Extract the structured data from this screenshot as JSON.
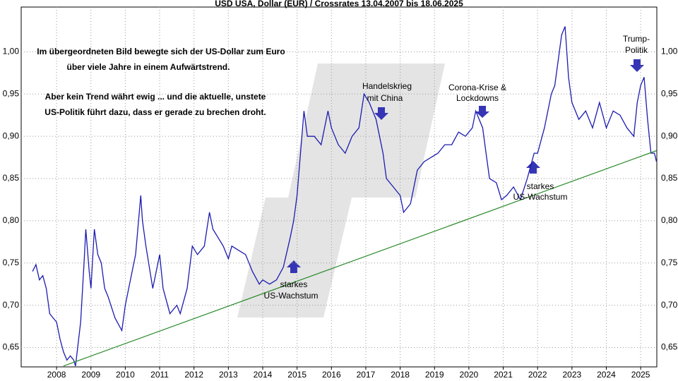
{
  "chart_data": {
    "type": "line",
    "title": "USD USA, Dollar (EUR) / Crossrates 13.04.2007 bis 18.06.2025",
    "annotations": [
      "Im übergeordneten Bild bewegte sich der US-Dollar zum Euro",
      "über viele Jahre in einem Aufwärtstrend.",
      "Aber kein Trend währt ewig ... und die aktuelle, unstete",
      "US-Politik führt dazu, dass er gerade zu brechen droht.",
      "Handelskrieg",
      "mit China",
      "Corona-Krise &",
      "Lockdowns",
      "Trump-",
      "Politik",
      "starkes",
      "US-Wachstum",
      "starkes",
      "US-Wachstum"
    ],
    "xlim": [
      2006.97,
      2025.47
    ],
    "xticks": [
      2008,
      2009,
      2010,
      2011,
      2012,
      2013,
      2014,
      2015,
      2016,
      2017,
      2018,
      2019,
      2020,
      2021,
      2022,
      2023,
      2024,
      2025
    ],
    "ylim": [
      0.627,
      1.053
    ],
    "yticks": [
      {
        "value": 0.65,
        "label": "0,65"
      },
      {
        "value": 0.7,
        "label": "0,70"
      },
      {
        "value": 0.75,
        "label": "0,75"
      },
      {
        "value": 0.8,
        "label": "0,80"
      },
      {
        "value": 0.85,
        "label": "0,85"
      },
      {
        "value": 0.9,
        "label": "0,90"
      },
      {
        "value": 0.95,
        "label": "0,95"
      },
      {
        "value": 1.0,
        "label": "1,00"
      }
    ],
    "grid": true,
    "series": [
      {
        "color": "#1c1cb0",
        "x": [
          2007.3,
          2007.4,
          2007.5,
          2007.6,
          2007.7,
          2007.8,
          2007.9,
          2008.0,
          2008.1,
          2008.2,
          2008.3,
          2008.4,
          2008.5,
          2008.55,
          2008.7,
          2008.8,
          2008.85,
          2008.95,
          2009.0,
          2009.1,
          2009.2,
          2009.3,
          2009.4,
          2009.5,
          2009.7,
          2009.9,
          2010.0,
          2010.2,
          2010.3,
          2010.45,
          2010.5,
          2010.6,
          2010.8,
          2010.9,
          2011.0,
          2011.1,
          2011.3,
          2011.5,
          2011.6,
          2011.8,
          2011.95,
          2012.1,
          2012.3,
          2012.45,
          2012.55,
          2012.7,
          2012.85,
          2013.0,
          2013.1,
          2013.3,
          2013.5,
          2013.7,
          2013.9,
          2014.0,
          2014.2,
          2014.4,
          2014.6,
          2014.8,
          2014.9,
          2015.0,
          2015.1,
          2015.2,
          2015.3,
          2015.5,
          2015.7,
          2015.9,
          2016.0,
          2016.2,
          2016.4,
          2016.6,
          2016.8,
          2016.95,
          2017.1,
          2017.3,
          2017.5,
          2017.6,
          2017.8,
          2018.0,
          2018.1,
          2018.3,
          2018.5,
          2018.7,
          2018.9,
          2019.1,
          2019.3,
          2019.5,
          2019.7,
          2019.9,
          2020.1,
          2020.2,
          2020.4,
          2020.5,
          2020.6,
          2020.8,
          2020.95,
          2021.1,
          2021.3,
          2021.5,
          2021.7,
          2021.9,
          2022.0,
          2022.2,
          2022.4,
          2022.5,
          2022.6,
          2022.7,
          2022.8,
          2022.9,
          2023.0,
          2023.2,
          2023.4,
          2023.6,
          2023.8,
          2024.0,
          2024.2,
          2024.4,
          2024.6,
          2024.8,
          2024.9,
          2025.0,
          2025.1,
          2025.2,
          2025.3,
          2025.4,
          2025.46
        ],
        "values": [
          0.74,
          0.748,
          0.73,
          0.735,
          0.72,
          0.69,
          0.685,
          0.68,
          0.66,
          0.645,
          0.635,
          0.64,
          0.635,
          0.628,
          0.68,
          0.75,
          0.79,
          0.74,
          0.72,
          0.79,
          0.76,
          0.75,
          0.72,
          0.71,
          0.685,
          0.67,
          0.7,
          0.74,
          0.76,
          0.83,
          0.8,
          0.77,
          0.72,
          0.74,
          0.76,
          0.72,
          0.69,
          0.7,
          0.69,
          0.72,
          0.77,
          0.76,
          0.77,
          0.81,
          0.79,
          0.78,
          0.77,
          0.755,
          0.77,
          0.765,
          0.76,
          0.74,
          0.725,
          0.73,
          0.725,
          0.73,
          0.745,
          0.78,
          0.8,
          0.83,
          0.88,
          0.93,
          0.9,
          0.9,
          0.89,
          0.93,
          0.91,
          0.89,
          0.88,
          0.9,
          0.91,
          0.95,
          0.94,
          0.92,
          0.88,
          0.85,
          0.84,
          0.83,
          0.81,
          0.82,
          0.86,
          0.87,
          0.875,
          0.88,
          0.89,
          0.89,
          0.905,
          0.9,
          0.91,
          0.93,
          0.91,
          0.88,
          0.85,
          0.845,
          0.825,
          0.83,
          0.84,
          0.825,
          0.85,
          0.88,
          0.88,
          0.91,
          0.95,
          0.96,
          0.99,
          1.02,
          1.03,
          0.97,
          0.94,
          0.92,
          0.93,
          0.91,
          0.94,
          0.91,
          0.93,
          0.925,
          0.91,
          0.9,
          0.94,
          0.96,
          0.97,
          0.92,
          0.88,
          0.88,
          0.87
        ]
      },
      {
        "color": "#2a8a2a",
        "x": [
          2008.2,
          2025.46
        ],
        "values": [
          0.628,
          0.883
        ]
      }
    ]
  }
}
